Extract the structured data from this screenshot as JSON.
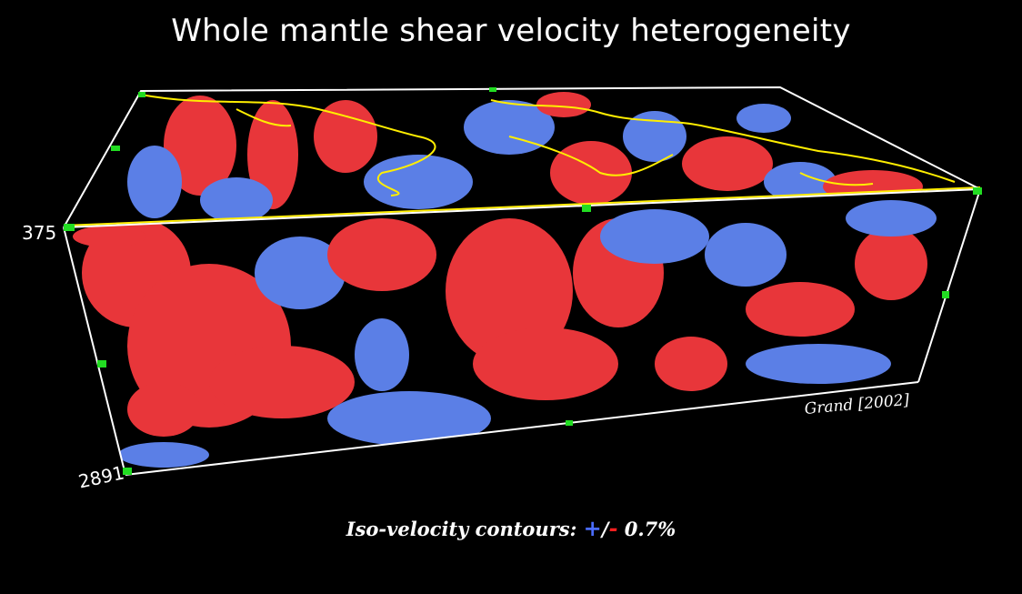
{
  "title": "Whole mantle shear velocity heterogeneity",
  "depth_top": "375",
  "depth_bottom": "2891",
  "credit": "Grand [2002]",
  "legend": {
    "prefix": "Iso-velocity contours: ",
    "plus": "+",
    "slash": "/",
    "minus": "-",
    "suffix": " 0.7%"
  },
  "colors": {
    "fast": "#5b7fe6",
    "slow": "#e8363a",
    "coastline": "#ffee00",
    "box": "#ffffff",
    "marker": "#22dd22"
  }
}
